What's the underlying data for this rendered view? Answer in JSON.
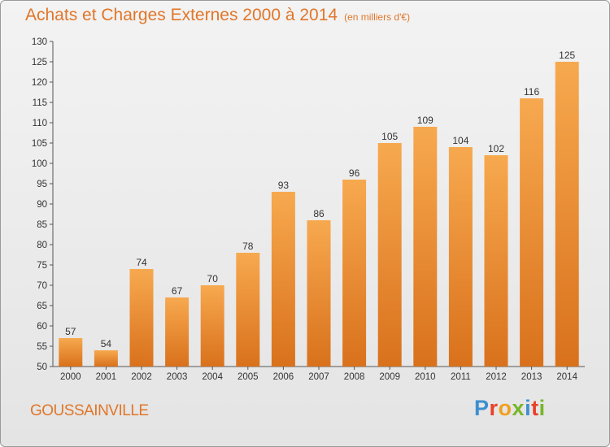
{
  "title": "Achats et Charges Externes 2000 à 2014",
  "subtitle": "(en milliers d'€)",
  "city": "GOUSSAINVILLE",
  "logo": {
    "letters": [
      "P",
      "r",
      "o",
      "x",
      "i",
      "t",
      "i"
    ],
    "colors": [
      "#3d8fd0",
      "#e8402a",
      "#f0a020",
      "#78b52a",
      "#3d8fd0",
      "#e8402a",
      "#78b52a"
    ]
  },
  "colors": {
    "bar_top": "#f7a94f",
    "bar_bottom": "#d9711c",
    "title": "#e0762a"
  },
  "chart_data": {
    "type": "bar",
    "title": "Achats et Charges Externes 2000 à 2014",
    "categories": [
      "2000",
      "2001",
      "2002",
      "2003",
      "2004",
      "2005",
      "2006",
      "2007",
      "2008",
      "2009",
      "2010",
      "2011",
      "2012",
      "2013",
      "2014"
    ],
    "values": [
      57,
      54,
      74,
      67,
      70,
      78,
      93,
      86,
      96,
      105,
      109,
      104,
      102,
      116,
      125
    ],
    "ylim": [
      50,
      130
    ],
    "yticks": [
      50,
      55,
      60,
      65,
      70,
      75,
      80,
      85,
      90,
      95,
      100,
      105,
      110,
      115,
      120,
      125,
      130
    ],
    "grid": false,
    "data_labels": true
  }
}
